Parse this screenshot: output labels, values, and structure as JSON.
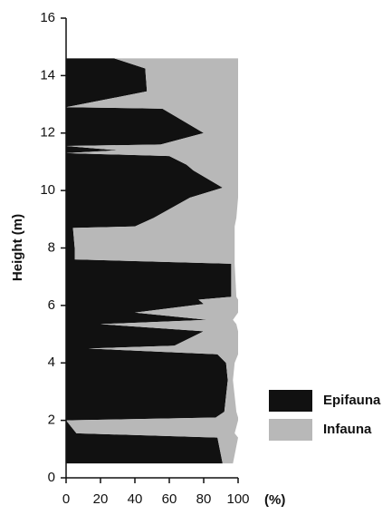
{
  "chart_data": {
    "type": "stacked_area_horizontal",
    "xlabel": "(%)",
    "ylabel": "Height (m)",
    "y": [
      14.6,
      14.25,
      13.45,
      12.9,
      12.85,
      12.0,
      11.6,
      11.55,
      11.4,
      11.3,
      11.2,
      10.9,
      10.7,
      10.1,
      9.75,
      9.05,
      8.75,
      8.7,
      8.0,
      7.6,
      7.45,
      6.3,
      6.2,
      6.05,
      5.75,
      5.5,
      5.35,
      5.1,
      4.6,
      4.5,
      4.3,
      4.0,
      3.4,
      2.3,
      2.1,
      2.0,
      1.55,
      1.4,
      0.5
    ],
    "series": [
      {
        "name": "Epifauna",
        "color": "#111111",
        "values": [
          28,
          46,
          47,
          0,
          56,
          80,
          55,
          0,
          30,
          0,
          60,
          70,
          74,
          91,
          72,
          51,
          40,
          4,
          5,
          5,
          96,
          96,
          77,
          80,
          40,
          82,
          20,
          80,
          63,
          13,
          88,
          93,
          94,
          92,
          87,
          0,
          6,
          88,
          91
        ]
      },
      {
        "name": "Infauna",
        "color": "#b8b8b8",
        "values": [
          72,
          54,
          53,
          100,
          44,
          20,
          45,
          100,
          70,
          100,
          40,
          30,
          26,
          9,
          28,
          48,
          58,
          94,
          93,
          93,
          2,
          3,
          23,
          20,
          60,
          15,
          79,
          20,
          37,
          87,
          12,
          5,
          3,
          7,
          13,
          100,
          92,
          12,
          6
        ]
      }
    ],
    "xlim": [
      0,
      100
    ],
    "xticks": [
      0,
      20,
      40,
      60,
      80,
      100
    ],
    "ylim": [
      0,
      16
    ],
    "yticks": [
      0,
      2,
      4,
      6,
      8,
      10,
      12,
      14,
      16
    ]
  }
}
